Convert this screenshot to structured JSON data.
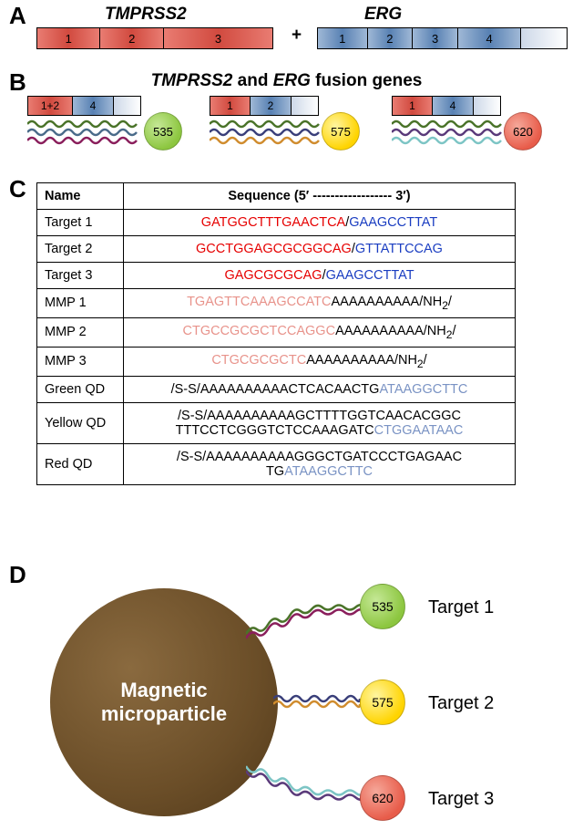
{
  "panelA": {
    "label": "A",
    "gene1": {
      "name": "TMPRSS2",
      "exons": [
        "1",
        "2",
        "3"
      ]
    },
    "gene2": {
      "name": "ERG",
      "exons": [
        "1",
        "2",
        "3",
        "4"
      ]
    },
    "plus": "+"
  },
  "panelB": {
    "label": "B",
    "title_pre": "TMPRSS2",
    "title_mid": " and ",
    "title_post": "ERG",
    "title_end": " fusion genes",
    "fusions": [
      {
        "red_label": "1+2",
        "blue_label": "4",
        "qd": "535",
        "qd_color": "#8cc63f",
        "wavy_colors": [
          "#4a7329",
          "#4a6b8a",
          "#8a1f5c"
        ]
      },
      {
        "red_label": "1",
        "blue_label": "2",
        "qd": "575",
        "qd_color": "#ffd400",
        "wavy_colors": [
          "#4a7329",
          "#3a3f7a",
          "#d08c2e"
        ]
      },
      {
        "red_label": "1",
        "blue_label": "4",
        "qd": "620",
        "qd_color": "#e85c4a",
        "wavy_colors": [
          "#4a7329",
          "#5a3a7a",
          "#7dc5c5"
        ]
      }
    ]
  },
  "panelC": {
    "label": "C",
    "headers": [
      "Name",
      "Sequence (5′ ------------------ 3′)"
    ],
    "rows": [
      {
        "name": "Target 1",
        "seq": [
          {
            "c": "seq-red",
            "t": "GATGGCTTTGAACTCA"
          },
          {
            "c": "seq-black",
            "t": "/"
          },
          {
            "c": "seq-blue",
            "t": "GAAGCCTTAT"
          }
        ]
      },
      {
        "name": "Target 2",
        "seq": [
          {
            "c": "seq-red",
            "t": "GCCTGGAGCGCGGCAG"
          },
          {
            "c": "seq-black",
            "t": "/"
          },
          {
            "c": "seq-blue",
            "t": "GTTATTCCAG"
          }
        ]
      },
      {
        "name": "Target 3",
        "seq": [
          {
            "c": "seq-red",
            "t": "GAGCGCGCAG"
          },
          {
            "c": "seq-black",
            "t": "/"
          },
          {
            "c": "seq-blue",
            "t": "GAAGCCTTAT"
          }
        ]
      },
      {
        "name": "MMP 1",
        "seq": [
          {
            "c": "seq-pink",
            "t": "TGAGTTCAAAGCCATC"
          },
          {
            "c": "seq-black",
            "t": "AAAAAAAAAA/NH"
          },
          {
            "c": "seq-black sub",
            "t": "2"
          },
          {
            "c": "seq-black",
            "t": "/"
          }
        ]
      },
      {
        "name": "MMP 2",
        "seq": [
          {
            "c": "seq-pink",
            "t": "CTGCCGCGCTCCAGGC"
          },
          {
            "c": "seq-black",
            "t": "AAAAAAAAAA/NH"
          },
          {
            "c": "seq-black sub",
            "t": "2"
          },
          {
            "c": "seq-black",
            "t": "/"
          }
        ]
      },
      {
        "name": "MMP 3",
        "seq": [
          {
            "c": "seq-pink",
            "t": "CTGCGCGCTC"
          },
          {
            "c": "seq-black",
            "t": "AAAAAAAAAA/NH"
          },
          {
            "c": "seq-black sub",
            "t": "2"
          },
          {
            "c": "seq-black",
            "t": "/"
          }
        ]
      },
      {
        "name": "Green QD",
        "seq": [
          {
            "c": "seq-black",
            "t": "/S-S/AAAAAAAAAACTCACAACTG"
          },
          {
            "c": "seq-lblue",
            "t": "ATAAGGCTTC"
          }
        ]
      },
      {
        "name": "Yellow QD",
        "seq": [
          {
            "c": "seq-black",
            "t": "/S-S/AAAAAAAAAAGCTTTTGGTCAACACGGC TTTCCTCGGGTCTCCAAAGATC"
          },
          {
            "c": "seq-lblue",
            "t": "CTGGAATAAC"
          }
        ]
      },
      {
        "name": "Red QD",
        "seq": [
          {
            "c": "seq-black",
            "t": "/S-S/AAAAAAAAAAGGGCTGATCCCTGAGAAC TG"
          },
          {
            "c": "seq-lblue",
            "t": "ATAAGGCTTC"
          }
        ]
      }
    ]
  },
  "panelD": {
    "label": "D",
    "mmp_label": "Magnetic\nmicroparticle",
    "targets": [
      {
        "qd": "535",
        "qd_color": "#8cc63f",
        "label": "Target 1",
        "wavy_colors": [
          "#4a7329",
          "#8a1f5c"
        ]
      },
      {
        "qd": "575",
        "qd_color": "#ffd400",
        "label": "Target 2",
        "wavy_colors": [
          "#3a3f7a",
          "#d08c2e"
        ]
      },
      {
        "qd": "620",
        "qd_color": "#e85c4a",
        "label": "Target 3",
        "wavy_colors": [
          "#5a3a7a",
          "#7dc5c5"
        ]
      }
    ]
  },
  "colors": {
    "tmprss2_fill": "#d14a3f",
    "erg_fill": "#5881b3"
  }
}
